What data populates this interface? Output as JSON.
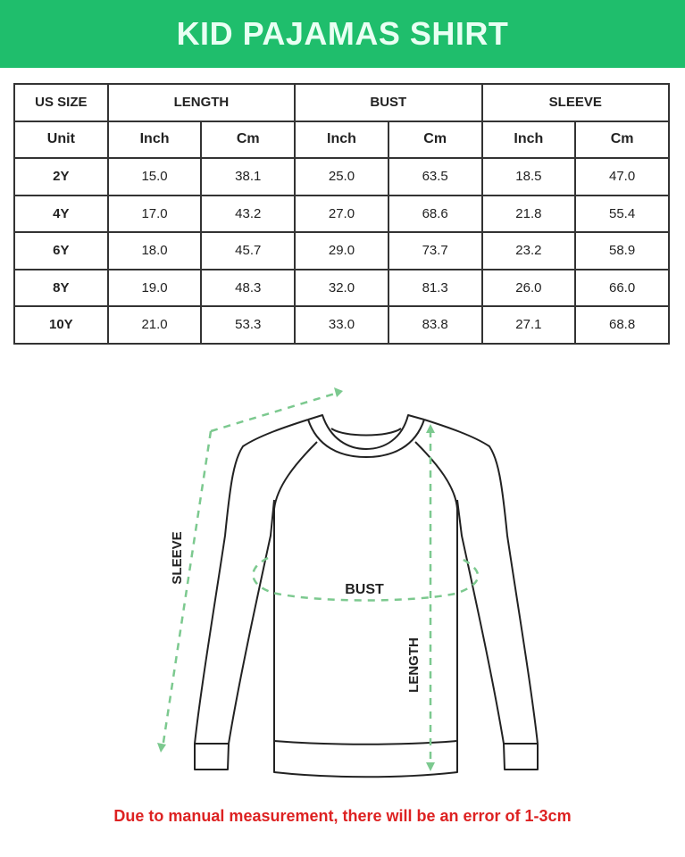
{
  "title": "KID PAJAMAS SHIRT",
  "table": {
    "headers": [
      "US SIZE",
      "LENGTH",
      "BUST",
      "SLEEVE"
    ],
    "units": [
      "Unit",
      "Inch",
      "Cm",
      "Inch",
      "Cm",
      "Inch",
      "Cm"
    ],
    "rows": [
      [
        "2Y",
        "15.0",
        "38.1",
        "25.0",
        "63.5",
        "18.5",
        "47.0"
      ],
      [
        "4Y",
        "17.0",
        "43.2",
        "27.0",
        "68.6",
        "21.8",
        "55.4"
      ],
      [
        "6Y",
        "18.0",
        "45.7",
        "29.0",
        "73.7",
        "23.2",
        "58.9"
      ],
      [
        "8Y",
        "19.0",
        "48.3",
        "32.0",
        "81.3",
        "26.0",
        "66.0"
      ],
      [
        "10Y",
        "21.0",
        "53.3",
        "33.0",
        "83.8",
        "27.1",
        "68.8"
      ]
    ]
  },
  "diagram": {
    "sleeve_label": "SLEEVE",
    "bust_label": "BUST",
    "length_label": "LENGTH",
    "measure_color": "#7cc98f"
  },
  "note": "Due to manual measurement, there will be an error of 1-3cm",
  "colors": {
    "header": "#1fbe6c",
    "note": "#dd2222"
  }
}
